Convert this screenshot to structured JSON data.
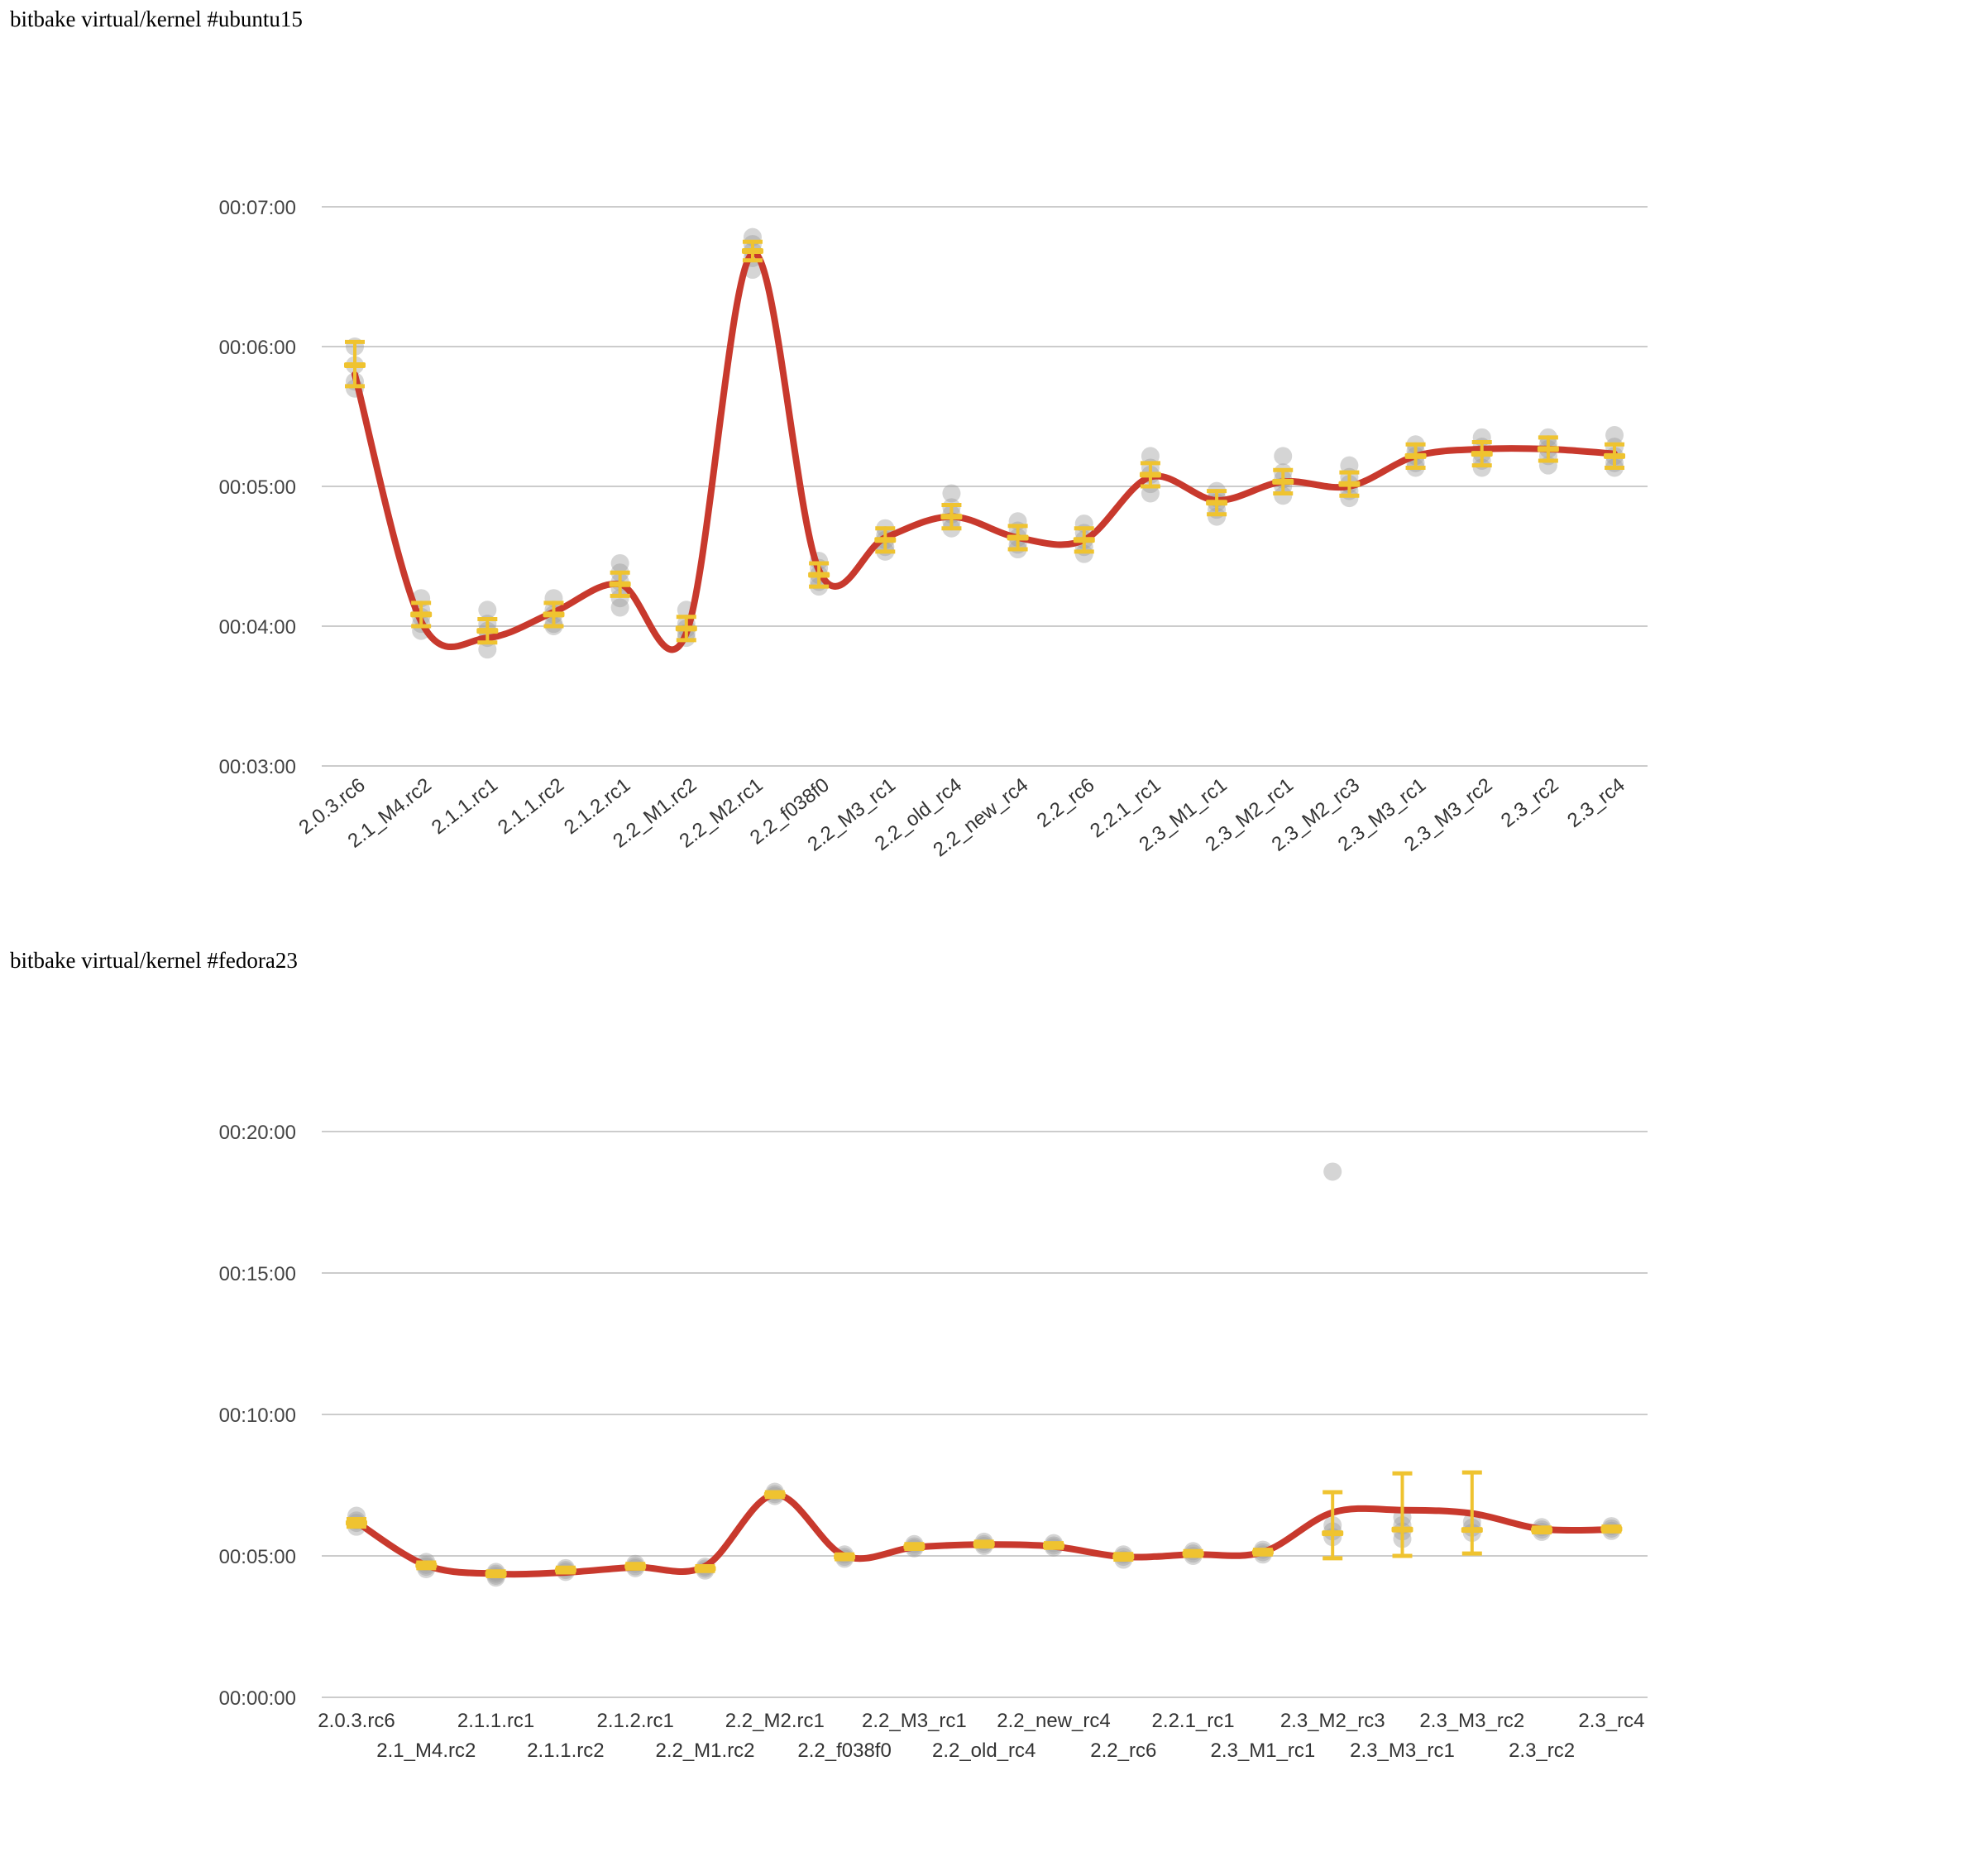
{
  "page": {
    "background": "#ffffff"
  },
  "chart_data": [
    {
      "chart_id": "ubuntu15",
      "type": "line",
      "title": "bitbake virtual/kernel #ubuntu15",
      "legend_position": "none",
      "grid": true,
      "colors": {
        "trend": "#c8392d",
        "error_bar": "#efc330",
        "samples": "#9a9a9a",
        "grid_line": "#cccccc",
        "axis_text": "#444444"
      },
      "y_axis": {
        "unit": "hh:mm:ss build time",
        "min_seconds": 180,
        "max_seconds": 420,
        "ticks": [
          {
            "label": "00:07:00",
            "seconds": 420
          },
          {
            "label": "00:06:00",
            "seconds": 360
          },
          {
            "label": "00:05:00",
            "seconds": 300
          },
          {
            "label": "00:04:00",
            "seconds": 240
          },
          {
            "label": "00:03:00",
            "seconds": 180
          }
        ]
      },
      "x_axis": {
        "label_style": "rotated"
      },
      "categories": [
        "2.0.3.rc6",
        "2.1_M4.rc2",
        "2.1.1.rc1",
        "2.1.1.rc2",
        "2.1.2.rc1",
        "2.2_M1.rc2",
        "2.2_M2.rc1",
        "2.2_f038f0",
        "2.2_M3_rc1",
        "2.2_old_rc4",
        "2.2_new_rc4",
        "2.2_rc6",
        "2.2.1_rc1",
        "2.3_M1_rc1",
        "2.3_M2_rc1",
        "2.3_M2_rc3",
        "2.3_M3_rc1",
        "2.3_M3_rc2",
        "2.3_rc2",
        "2.3_rc4"
      ],
      "series": {
        "trend": {
          "name": "smoothed mean build time",
          "values_seconds": [
            348,
            242,
            235,
            246,
            258,
            237,
            400,
            264,
            278,
            287,
            278,
            277,
            304,
            294,
            302,
            300,
            313,
            316,
            316,
            314
          ]
        },
        "mean": {
          "name": "mean with error bar",
          "values_seconds": [
            352,
            245,
            238,
            245,
            258,
            239,
            401,
            262,
            277,
            287,
            278,
            277,
            305,
            293,
            302,
            301,
            313,
            314,
            316,
            313
          ],
          "err_lo_seconds": [
            343,
            240,
            233,
            240,
            253,
            234,
            397,
            257,
            272,
            282,
            273,
            272,
            300,
            288,
            297,
            296,
            308,
            309,
            311,
            308
          ],
          "err_hi_seconds": [
            362,
            250,
            243,
            250,
            263,
            244,
            405,
            267,
            282,
            292,
            283,
            282,
            310,
            298,
            307,
            306,
            318,
            319,
            321,
            318
          ]
        },
        "samples": {
          "name": "individual build times",
          "values_seconds": [
            [
              360,
              352,
              345,
              342
            ],
            [
              252,
              247,
              244,
              241,
              238
            ],
            [
              247,
              241,
              238,
              235,
              230
            ],
            [
              252,
              247,
              245,
              241,
              240
            ],
            [
              267,
              263,
              259,
              256,
              252,
              248
            ],
            [
              247,
              241,
              239,
              237,
              235
            ],
            [
              407,
              404,
              401,
              398,
              393
            ],
            [
              268,
              265,
              262,
              259,
              257
            ],
            [
              282,
              279,
              277,
              274,
              272
            ],
            [
              297,
              291,
              288,
              285,
              282
            ],
            [
              285,
              281,
              278,
              275,
              273
            ],
            [
              284,
              280,
              277,
              274,
              271
            ],
            [
              313,
              308,
              305,
              301,
              297
            ],
            [
              298,
              295,
              293,
              290,
              287
            ],
            [
              313,
              306,
              303,
              300,
              296
            ],
            [
              309,
              304,
              301,
              298,
              295
            ],
            [
              318,
              315,
              313,
              310,
              308
            ],
            [
              321,
              317,
              314,
              311,
              308
            ],
            [
              321,
              318,
              316,
              313,
              309
            ],
            [
              322,
              317,
              313,
              310,
              308
            ]
          ]
        }
      }
    },
    {
      "chart_id": "fedora23",
      "type": "line",
      "title": "bitbake virtual/kernel #fedora23",
      "legend_position": "none",
      "grid": true,
      "colors": {
        "trend": "#c8392d",
        "error_bar": "#efc330",
        "samples": "#9a9a9a",
        "grid_line": "#cccccc",
        "axis_text": "#444444"
      },
      "y_axis": {
        "unit": "hh:mm:ss build time",
        "min_seconds": 0,
        "max_seconds": 1200,
        "ticks": [
          {
            "label": "00:20:00",
            "seconds": 1200
          },
          {
            "label": "00:15:00",
            "seconds": 900
          },
          {
            "label": "00:10:00",
            "seconds": 600
          },
          {
            "label": "00:05:00",
            "seconds": 300
          },
          {
            "label": "00:00:00",
            "seconds": 0
          }
        ]
      },
      "x_axis": {
        "label_style": "two-row"
      },
      "categories": [
        "2.0.3.rc6",
        "2.1_M4.rc2",
        "2.1.1.rc1",
        "2.1.1.rc2",
        "2.1.2.rc1",
        "2.2_M1.rc2",
        "2.2_M2.rc1",
        "2.2_f038f0",
        "2.2_M3_rc1",
        "2.2_old_rc4",
        "2.2_new_rc4",
        "2.2_rc6",
        "2.2.1_rc1",
        "2.3_M1_rc1",
        "2.3_M2_rc3",
        "2.3_M3_rc1",
        "2.3_M3_rc2",
        "2.3_rc2",
        "2.3_rc4"
      ],
      "series": {
        "trend": {
          "name": "smoothed mean build time",
          "values_seconds": [
            372,
            280,
            262,
            265,
            276,
            278,
            430,
            300,
            318,
            324,
            320,
            298,
            303,
            308,
            392,
            397,
            390,
            357,
            356
          ]
        },
        "mean": {
          "name": "mean with error bar",
          "values_seconds": [
            370,
            280,
            262,
            270,
            278,
            273,
            430,
            298,
            320,
            325,
            322,
            298,
            305,
            308,
            348,
            356,
            355,
            355,
            357
          ],
          "err_lo_seconds": [
            362,
            274,
            257,
            265,
            273,
            268,
            425,
            293,
            315,
            320,
            317,
            292,
            300,
            303,
            295,
            300,
            305,
            350,
            352
          ],
          "err_hi_seconds": [
            378,
            286,
            267,
            275,
            283,
            278,
            435,
            303,
            325,
            330,
            327,
            304,
            310,
            313,
            435,
            475,
            477,
            360,
            362
          ]
        },
        "samples": {
          "name": "individual build times",
          "values_seconds": [
            [
              385,
              375,
              370,
              362
            ],
            [
              287,
              281,
              277,
              272
            ],
            [
              266,
              262,
              258,
              254
            ],
            [
              274,
              270,
              266
            ],
            [
              283,
              278,
              274
            ],
            [
              277,
              273,
              269
            ],
            [
              436,
              431,
              427
            ],
            [
              303,
              298,
              294
            ],
            [
              325,
              320,
              316
            ],
            [
              330,
              325,
              321
            ],
            [
              327,
              322,
              318
            ],
            [
              303,
              298,
              292
            ],
            [
              310,
              305,
              300
            ],
            [
              313,
              308,
              303
            ],
            [
              1115,
              365,
              352,
              340
            ],
            [
              382,
              365,
              352,
              336
            ],
            [
              372,
              360,
              349
            ],
            [
              361,
              356,
              351
            ],
            [
              363,
              358,
              353
            ]
          ]
        }
      }
    }
  ]
}
